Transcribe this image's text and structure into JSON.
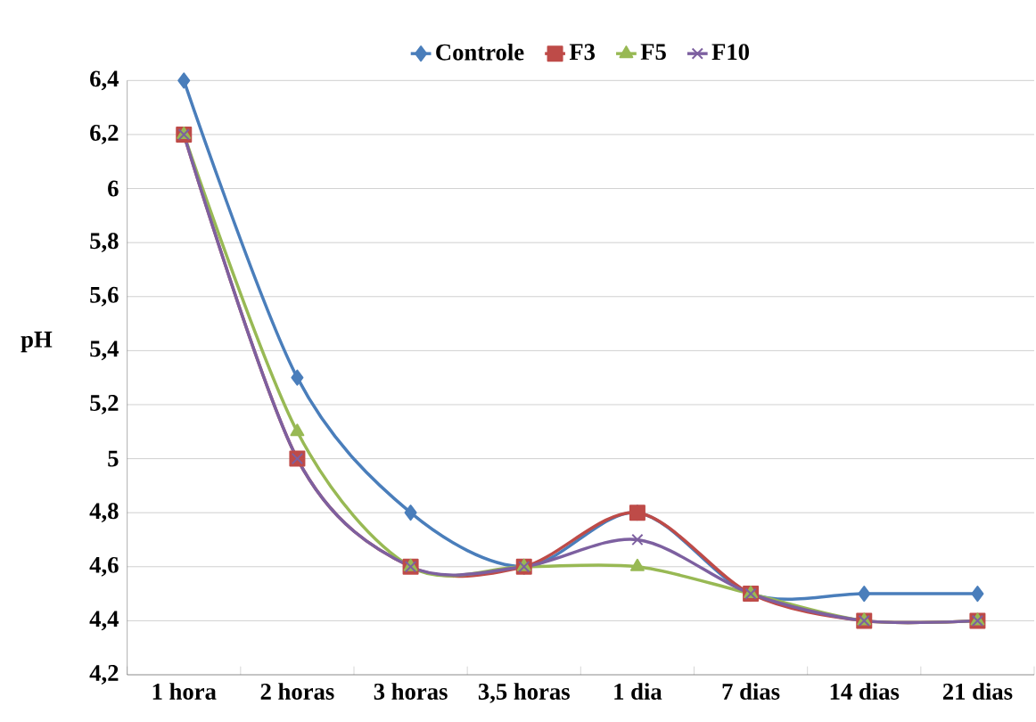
{
  "chart_data": {
    "type": "line",
    "ylabel": "pH",
    "categories": [
      "1 hora",
      "2 horas",
      "3 horas",
      "3,5 horas",
      "1 dia",
      "7 dias",
      "14 dias",
      "21 dias"
    ],
    "series": [
      {
        "name": "Controle",
        "color": "#4a7ebb",
        "marker": "diamond",
        "values": [
          6.4,
          5.3,
          4.8,
          4.6,
          4.8,
          4.5,
          4.5,
          4.5
        ]
      },
      {
        "name": "F3",
        "color": "#be4b48",
        "marker": "square",
        "values": [
          6.2,
          5.0,
          4.6,
          4.6,
          4.8,
          4.5,
          4.4,
          4.4
        ]
      },
      {
        "name": "F5",
        "color": "#98b954",
        "marker": "triangle",
        "values": [
          6.2,
          5.1,
          4.6,
          4.6,
          4.6,
          4.5,
          4.4,
          4.4
        ]
      },
      {
        "name": "F10",
        "color": "#7d60a0",
        "marker": "cross",
        "values": [
          6.2,
          5.0,
          4.6,
          4.6,
          4.7,
          4.5,
          4.4,
          4.4
        ]
      }
    ],
    "ylim": [
      4.2,
      6.4
    ],
    "yticks": [
      {
        "value": 4.2,
        "label": "4,2"
      },
      {
        "value": 4.4,
        "label": "4,4"
      },
      {
        "value": 4.6,
        "label": "4,6"
      },
      {
        "value": 4.8,
        "label": "4,8"
      },
      {
        "value": 5,
        "label": "5"
      },
      {
        "value": 5.2,
        "label": "5,2"
      },
      {
        "value": 5.4,
        "label": "5,4"
      },
      {
        "value": 5.6,
        "label": "5,6"
      },
      {
        "value": 5.8,
        "label": "5,8"
      },
      {
        "value": 6,
        "label": "6"
      },
      {
        "value": 6.2,
        "label": "6,2"
      },
      {
        "value": 6.4,
        "label": "6,4"
      }
    ],
    "grid": "y",
    "legend": "top"
  }
}
